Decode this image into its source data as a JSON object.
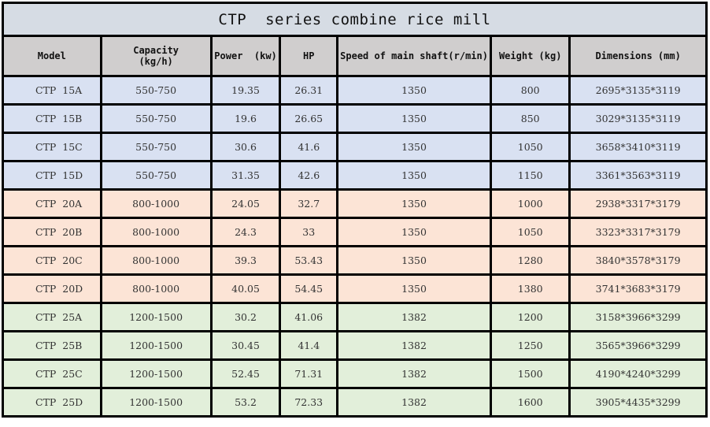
{
  "table": {
    "title": "CTP  series combine rice mill",
    "columns": [
      {
        "key": "model",
        "label": "Model"
      },
      {
        "key": "capacity",
        "label": "Capacity\n(kg/h)",
        "label_line1": "Capacity",
        "label_line2": "(kg/h)"
      },
      {
        "key": "power",
        "label": "Power  (kw)"
      },
      {
        "key": "hp",
        "label": "HP"
      },
      {
        "key": "speed",
        "label": "Speed of main shaft(r/min)"
      },
      {
        "key": "weight",
        "label": "Weight (kg)"
      },
      {
        "key": "dimensions",
        "label": "Dimensions (mm)"
      }
    ],
    "colors": {
      "title_bg": "#d6dce4",
      "header_bg": "#d0cece",
      "group_15_bg": "#d9e1f2",
      "group_20_bg": "#fce4d6",
      "group_25_bg": "#e2efda",
      "border": "#000000"
    },
    "rows": [
      {
        "model": "CTP  15A",
        "capacity": "550-750",
        "power": "19.35",
        "hp": "26.31",
        "speed": "1350",
        "weight": "800",
        "dimensions": "2695*3135*3119"
      },
      {
        "model": "CTP  15B",
        "capacity": "550-750",
        "power": "19.6",
        "hp": "26.65",
        "speed": "1350",
        "weight": "850",
        "dimensions": "3029*3135*3119"
      },
      {
        "model": "CTP  15C",
        "capacity": "550-750",
        "power": "30.6",
        "hp": "41.6",
        "speed": "1350",
        "weight": "1050",
        "dimensions": "3658*3410*3119"
      },
      {
        "model": "CTP  15D",
        "capacity": "550-750",
        "power": "31.35",
        "hp": "42.6",
        "speed": "1350",
        "weight": "1150",
        "dimensions": "3361*3563*3119"
      },
      {
        "model": "CTP  20A",
        "capacity": "800-1000",
        "power": "24.05",
        "hp": "32.7",
        "speed": "1350",
        "weight": "1000",
        "dimensions": "2938*3317*3179"
      },
      {
        "model": "CTP  20B",
        "capacity": "800-1000",
        "power": "24.3",
        "hp": "33",
        "speed": "1350",
        "weight": "1050",
        "dimensions": "3323*3317*3179"
      },
      {
        "model": "CTP  20C",
        "capacity": "800-1000",
        "power": "39.3",
        "hp": "53.43",
        "speed": "1350",
        "weight": "1280",
        "dimensions": "3840*3578*3179"
      },
      {
        "model": "CTP  20D",
        "capacity": "800-1000",
        "power": "40.05",
        "hp": "54.45",
        "speed": "1350",
        "weight": "1380",
        "dimensions": "3741*3683*3179"
      },
      {
        "model": "CTP  25A",
        "capacity": "1200-1500",
        "power": "30.2",
        "hp": "41.06",
        "speed": "1382",
        "weight": "1200",
        "dimensions": "3158*3966*3299"
      },
      {
        "model": "CTP  25B",
        "capacity": "1200-1500",
        "power": "30.45",
        "hp": "41.4",
        "speed": "1382",
        "weight": "1250",
        "dimensions": "3565*3966*3299"
      },
      {
        "model": "CTP  25C",
        "capacity": "1200-1500",
        "power": "52.45",
        "hp": "71.31",
        "speed": "1382",
        "weight": "1500",
        "dimensions": "4190*4240*3299"
      },
      {
        "model": "CTP  25D",
        "capacity": "1200-1500",
        "power": "53.2",
        "hp": "72.33",
        "speed": "1382",
        "weight": "1600",
        "dimensions": "3905*4435*3299"
      }
    ]
  }
}
